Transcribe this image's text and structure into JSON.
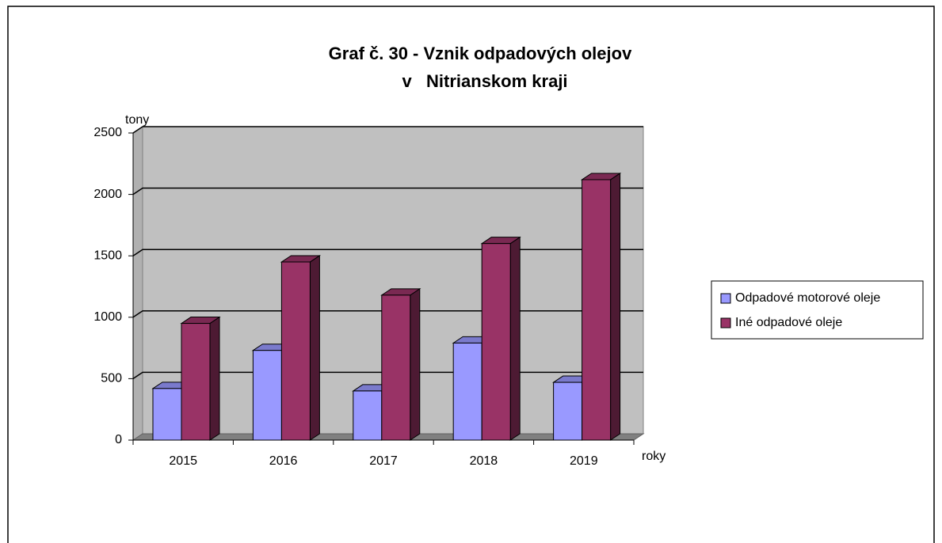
{
  "chart_data": {
    "type": "bar3d",
    "title": [
      "Graf č. 30 - Vznik odpadových olejov",
      "v   Nitrianskom kraji"
    ],
    "y_label": "tony",
    "x_label": "roky",
    "categories": [
      "2015",
      "2016",
      "2017",
      "2018",
      "2019"
    ],
    "series": [
      {
        "name": "Odpadové motorové oleje",
        "color": "#9999ff",
        "values": [
          420,
          730,
          400,
          790,
          470
        ]
      },
      {
        "name": "Iné odpadové oleje",
        "color": "#993366",
        "values": [
          950,
          1450,
          1180,
          1600,
          2120
        ]
      }
    ],
    "ylim": [
      0,
      2500
    ],
    "yticks": [
      0,
      500,
      1000,
      1500,
      2000,
      2500
    ],
    "grid": true,
    "legend": "right"
  }
}
